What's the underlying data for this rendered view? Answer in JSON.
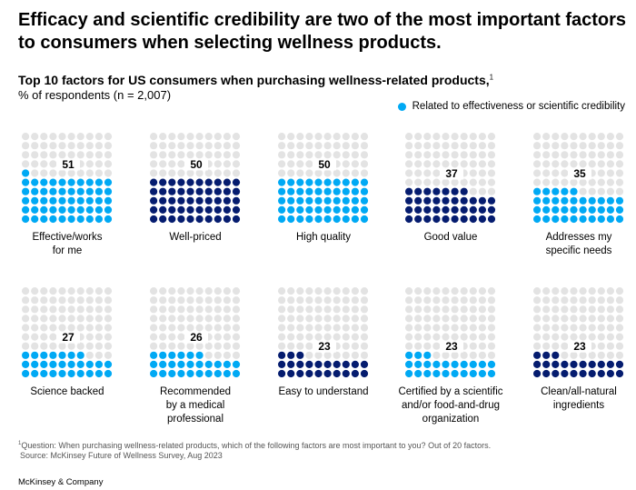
{
  "title": "Efficacy and scientific credibility are two of the most important factors to consumers when selecting wellness products.",
  "colors": {
    "effectiveness": "#00a9f4",
    "other": "#051c6f",
    "empty": "#e3e3e3"
  },
  "chart_data": {
    "type": "waffle",
    "title": "Top 10 factors for US consumers when purchasing wellness-related products,",
    "title_footnote": "1",
    "subtitle": "% of respondents (n = 2,007)",
    "legend": [
      {
        "label": "Related to effectiveness or scientific credibility",
        "color": "#00a9f4",
        "placement": "top-right"
      }
    ],
    "grid": {
      "rows": 10,
      "cols": 10
    },
    "items": [
      {
        "label": "Effective/works for me",
        "lines": [
          "Effective/works",
          "for me"
        ],
        "value": 51,
        "effectiveness": true
      },
      {
        "label": "Well-priced",
        "lines": [
          "Well-priced"
        ],
        "value": 50,
        "effectiveness": false
      },
      {
        "label": "High quality",
        "lines": [
          "High quality"
        ],
        "value": 50,
        "effectiveness": true
      },
      {
        "label": "Good value",
        "lines": [
          "Good value"
        ],
        "value": 37,
        "effectiveness": false
      },
      {
        "label": "Addresses my specific needs",
        "lines": [
          "Addresses my",
          "specific needs"
        ],
        "value": 35,
        "effectiveness": true
      },
      {
        "label": "Science backed",
        "lines": [
          "Science backed"
        ],
        "value": 27,
        "effectiveness": true
      },
      {
        "label": "Recommended by a medical professional",
        "lines": [
          "Recommended",
          "by a medical",
          "professional"
        ],
        "value": 26,
        "effectiveness": true
      },
      {
        "label": "Easy to understand",
        "lines": [
          "Easy to understand"
        ],
        "value": 23,
        "effectiveness": false
      },
      {
        "label": "Certified by a scientific and/or food-and-drug organization",
        "lines": [
          "Certified by a scientific",
          "and/or food-and-drug",
          "organization"
        ],
        "value": 23,
        "effectiveness": true
      },
      {
        "label": "Clean/all-natural ingredients",
        "lines": [
          "Clean/all-natural",
          "ingredients"
        ],
        "value": 23,
        "effectiveness": false
      }
    ]
  },
  "footnote": {
    "marker": "1",
    "question": "Question: When purchasing wellness-related products, which of the following factors are most important to you? Out of 20 factors.",
    "source": "Source: McKinsey Future of Wellness Survey, Aug 2023"
  },
  "brand": "McKinsey & Company"
}
